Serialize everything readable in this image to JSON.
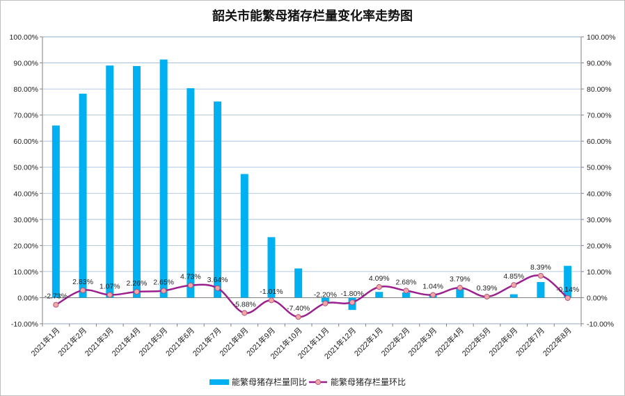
{
  "chart_data": {
    "type": "bar+line",
    "title": "韶关市能繁母猪存栏量变化率走势图",
    "categories": [
      "2021年1月",
      "2021年2月",
      "2021年3月",
      "2021年4月",
      "2021年5月",
      "2021年6月",
      "2021年7月",
      "2021年8月",
      "2021年9月",
      "2021年10月",
      "2021年11月",
      "2021年12月",
      "2022年1月",
      "2022年2月",
      "2022年3月",
      "2022年4月",
      "2022年5月",
      "2022年6月",
      "2022年7月",
      "2022年8月"
    ],
    "y_left": {
      "ylim": [
        -10,
        100
      ],
      "ticks": [
        "100.00%",
        "90.00%",
        "80.00%",
        "70.00%",
        "60.00%",
        "50.00%",
        "40.00%",
        "30.00%",
        "20.00%",
        "10.00%",
        "0.00%",
        "-10.00%"
      ],
      "tick_values": [
        100,
        90,
        80,
        70,
        60,
        50,
        40,
        30,
        20,
        10,
        0,
        -10
      ]
    },
    "y_right": {
      "ylim": [
        -10,
        100
      ],
      "ticks": [
        "100.00%",
        "90.00%",
        "80.00%",
        "70.00%",
        "60.00%",
        "50.00%",
        "40.00%",
        "30.00%",
        "20.00%",
        "10.00%",
        "0.00%",
        "-10.00%"
      ]
    },
    "series": [
      {
        "name": "能繁母猪存栏量同比",
        "kind": "bar",
        "axis": "left",
        "color": "#00b0f0",
        "values": [
          66.0,
          78.2,
          89.0,
          88.8,
          91.3,
          80.3,
          75.2,
          47.4,
          23.2,
          11.2,
          -1.8,
          -4.7,
          2.2,
          2.0,
          1.4,
          3.4,
          0.1,
          1.3,
          6.0,
          12.2
        ]
      },
      {
        "name": "能繁母猪存栏量环比",
        "kind": "line",
        "axis": "right",
        "color": "#9b1f8f",
        "marker_color": "#f4a6a6",
        "values": [
          -2.73,
          2.83,
          1.07,
          2.26,
          2.65,
          4.73,
          3.64,
          -5.88,
          -1.01,
          -7.4,
          -2.2,
          -1.8,
          4.09,
          2.68,
          1.04,
          3.79,
          0.39,
          4.85,
          8.39,
          -0.14
        ],
        "labels": [
          "-2.73%",
          "2.83%",
          "1.07%",
          "2.26%",
          "2.65%",
          "4.73%",
          "3.64%",
          "-5.88%",
          "-1.01%",
          "-7.40%",
          "-2.20%",
          "-1.80%",
          "4.09%",
          "2.68%",
          "1.04%",
          "3.79%",
          "0.39%",
          "4.85%",
          "8.39%",
          "-0.14%"
        ]
      }
    ],
    "grid": true,
    "legend_position": "bottom"
  }
}
